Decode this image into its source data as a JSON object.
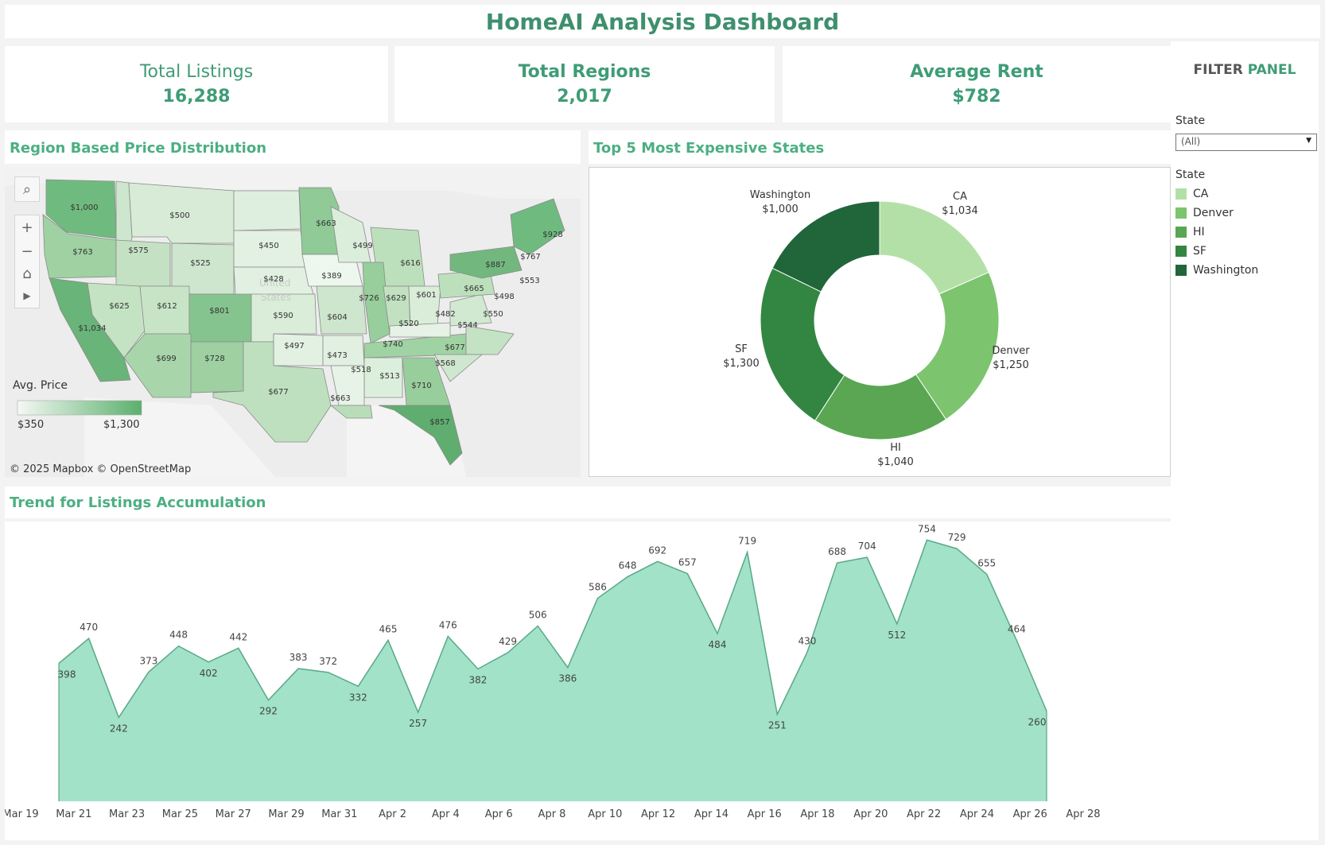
{
  "dashboard": {
    "title": "HomeAI Analysis Dashboard"
  },
  "kpis": {
    "listings": {
      "label": "Total Listings",
      "value": "16,288"
    },
    "regions": {
      "label": "Total Regions",
      "value": "2,017"
    },
    "rent": {
      "label": "Average Rent",
      "value": "$782"
    }
  },
  "filter_panel": {
    "title_part1": "FILTER ",
    "title_part2": "PANEL",
    "state_label": "State",
    "state_selected": "(All)",
    "legend_title": "State",
    "legend": [
      {
        "label": "CA",
        "color": "#b3e0a6"
      },
      {
        "label": "Denver",
        "color": "#7cc46e"
      },
      {
        "label": "HI",
        "color": "#5aa653"
      },
      {
        "label": "SF",
        "color": "#338642"
      },
      {
        "label": "Washington",
        "color": "#20663a"
      }
    ]
  },
  "map_section": {
    "title": "Region Based Price Distribution",
    "legend_title": "Avg. Price",
    "legend_min": "$350",
    "legend_max": "$1,300",
    "attribution": "© 2025 Mapbox  © OpenStreetMap",
    "country_label_1": "United",
    "country_label_2": "States",
    "region_labels": [
      "$1,000",
      "$500",
      "$663",
      "$928",
      "$763",
      "$575",
      "$450",
      "$499",
      "$525",
      "$389",
      "$616",
      "$767",
      "$887",
      "$428",
      "$553",
      "$625",
      "$612",
      "$801",
      "$726",
      "$629",
      "$601",
      "$665",
      "$498",
      "$590",
      "$604",
      "$482",
      "$550",
      "$1,034",
      "$520",
      "$544",
      "$497",
      "$473",
      "$740",
      "$677",
      "$699",
      "$728",
      "$568",
      "$518",
      "$513",
      "$710",
      "$677",
      "$663",
      "$857"
    ]
  },
  "donut_section": {
    "title": "Top 5 Most Expensive States"
  },
  "trend_section": {
    "title": "Trend for Listings Accumulation"
  },
  "chart_data": [
    {
      "type": "pie",
      "title": "Top 5 Most Expensive States",
      "categories": [
        "CA",
        "Denver",
        "HI",
        "SF",
        "Washington"
      ],
      "values": [
        1034,
        1250,
        1040,
        1300,
        1000
      ],
      "value_labels": [
        "$1,034",
        "$1,250",
        "$1,040",
        "$1,300",
        "$1,000"
      ],
      "colors": [
        "#b3e0a6",
        "#7cc46e",
        "#5aa653",
        "#338642",
        "#20663a"
      ],
      "donut": true
    },
    {
      "type": "area",
      "title": "Trend for Listings Accumulation",
      "x_start": "Mar 21",
      "x_end": "Apr 26",
      "values": [
        398,
        470,
        242,
        373,
        448,
        402,
        442,
        292,
        383,
        372,
        332,
        465,
        257,
        476,
        382,
        429,
        506,
        386,
        586,
        648,
        692,
        657,
        484,
        719,
        251,
        430,
        688,
        704,
        512,
        754,
        729,
        655,
        464,
        260
      ],
      "value_labels": [
        "398",
        "470",
        "242",
        "373",
        "448",
        "402",
        "442",
        "292",
        "383",
        "372",
        "332",
        "465",
        "257",
        "476",
        "382",
        "429",
        "506",
        "386",
        "586",
        "648",
        "692",
        "657",
        "484",
        "719",
        "251",
        "430",
        "688",
        "704",
        "512",
        "754",
        "729",
        "655",
        "464",
        "260"
      ],
      "x_tick_labels": [
        "Mar 19",
        "Mar 21",
        "Mar 23",
        "Mar 25",
        "Mar 27",
        "Mar 29",
        "Mar 31",
        "Apr 2",
        "Apr 4",
        "Apr 6",
        "Apr 8",
        "Apr 10",
        "Apr 12",
        "Apr 14",
        "Apr 16",
        "Apr 18",
        "Apr 20",
        "Apr 22",
        "Apr 24",
        "Apr 26",
        "Apr 28"
      ],
      "ylim": [
        0,
        780
      ],
      "fill_color": "#a1e2c9",
      "line_color": "#5aa887"
    }
  ]
}
